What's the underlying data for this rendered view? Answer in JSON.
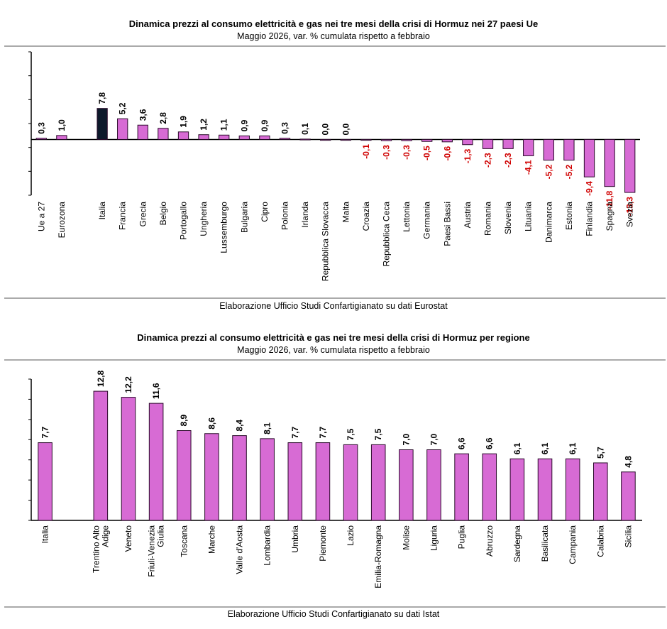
{
  "colors": {
    "bar": "#d76bd4",
    "bar_highlight": "#0d1a2b",
    "negative_label": "#d00000",
    "positive_label": "#000000",
    "axis": "#000000"
  },
  "chart_data": [
    {
      "type": "bar",
      "title": "Dinamica prezzi al consumo elettricità e gas nei tre mesi della crisi di Hormuz nei 27 paesi Ue",
      "subtitle": "Maggio 2026, var. % cumulata rispetto a febbraio",
      "source": "Elaborazione Ufficio Studi Confartigianato su dati Eurostat",
      "xlabel": "",
      "ylabel": "",
      "ylim": [
        -14,
        22
      ],
      "grid": false,
      "categories": [
        "Ue a 27",
        "Eurozona",
        "",
        "Italia",
        "Francia",
        "Grecia",
        "Belgio",
        "Portogallo",
        "Ungheria",
        "Lussemburgo",
        "Bulgaria",
        "Cipro",
        "Polonia",
        "Irlanda",
        "Repubblica Slovacca",
        "Malta",
        "Croazia",
        "Repubblica Ceca",
        "Lettonia",
        "Germania",
        "Paesi Bassi",
        "Austria",
        "Romania",
        "Slovenia",
        "Lituania",
        "Danimarca",
        "Estonia",
        "Finlandia",
        "Spagna",
        "Svezia"
      ],
      "values": [
        0.3,
        1.0,
        null,
        7.8,
        5.2,
        3.6,
        2.8,
        1.9,
        1.2,
        1.1,
        0.9,
        0.9,
        0.3,
        0.1,
        0.0,
        0.0,
        -0.1,
        -0.3,
        -0.3,
        -0.5,
        -0.6,
        -1.3,
        -2.3,
        -2.3,
        -4.1,
        -5.2,
        -5.2,
        -9.4,
        -11.8,
        -13.3
      ],
      "labels": [
        "0,3",
        "1,0",
        "",
        "7,8",
        "5,2",
        "3,6",
        "2,8",
        "1,9",
        "1,2",
        "1,1",
        "0,9",
        "0,9",
        "0,3",
        "0,1",
        "0,0",
        "0,0",
        "-0,1",
        "-0,3",
        "-0,3",
        "-0,5",
        "-0,6",
        "-1,3",
        "-2,3",
        "-2,3",
        "-4,1",
        "-5,2",
        "-5,2",
        "-9,4",
        "-11,8",
        "-13,3"
      ],
      "highlight": [
        "Italia"
      ]
    },
    {
      "type": "bar",
      "title": "Dinamica prezzi al consumo elettricità e gas nei tre mesi della crisi di Hormuz per regione",
      "subtitle": "Maggio 2026, var. % cumulata rispetto a febbraio",
      "source": "Elaborazione Ufficio Studi Confartigianato su dati Istat",
      "xlabel": "",
      "ylabel": "",
      "ylim": [
        0,
        14
      ],
      "grid": false,
      "categories": [
        "Italia",
        "",
        "Trentino Alto Adige",
        "Veneto",
        "Friuli-Venezia Giulia",
        "Toscana",
        "Marche",
        "Valle d'Aosta",
        "Lombardia",
        "Umbria",
        "Piemonte",
        "Lazio",
        "Emilia-Romagna",
        "Molise",
        "Liguria",
        "Puglia",
        "Abruzzo",
        "Sardegna",
        "Basilicata",
        "Campania",
        "Calabria",
        "Sicilia"
      ],
      "category_lines": [
        [
          "Italia"
        ],
        [],
        [
          "Trentino Alto",
          "Adige"
        ],
        [
          "Veneto"
        ],
        [
          "Friuli-Venezia",
          "Giulia"
        ],
        [
          "Toscana"
        ],
        [
          "Marche"
        ],
        [
          "Valle d'Aosta"
        ],
        [
          "Lombardia"
        ],
        [
          "Umbria"
        ],
        [
          "Piemonte"
        ],
        [
          "Lazio"
        ],
        [
          "Emilia-Romagna"
        ],
        [
          "Molise"
        ],
        [
          "Liguria"
        ],
        [
          "Puglia"
        ],
        [
          "Abruzzo"
        ],
        [
          "Sardegna"
        ],
        [
          "Basilicata"
        ],
        [
          "Campania"
        ],
        [
          "Calabria"
        ],
        [
          "Sicilia"
        ]
      ],
      "values": [
        7.7,
        null,
        12.8,
        12.2,
        11.6,
        8.9,
        8.6,
        8.4,
        8.1,
        7.7,
        7.7,
        7.5,
        7.5,
        7.0,
        7.0,
        6.6,
        6.6,
        6.1,
        6.1,
        6.1,
        5.7,
        4.8
      ],
      "labels": [
        "7,7",
        "",
        "12,8",
        "12,2",
        "11,6",
        "8,9",
        "8,6",
        "8,4",
        "8,1",
        "7,7",
        "7,7",
        "7,5",
        "7,5",
        "7,0",
        "7,0",
        "6,6",
        "6,6",
        "6,1",
        "6,1",
        "6,1",
        "5,7",
        "4,8"
      ]
    }
  ]
}
